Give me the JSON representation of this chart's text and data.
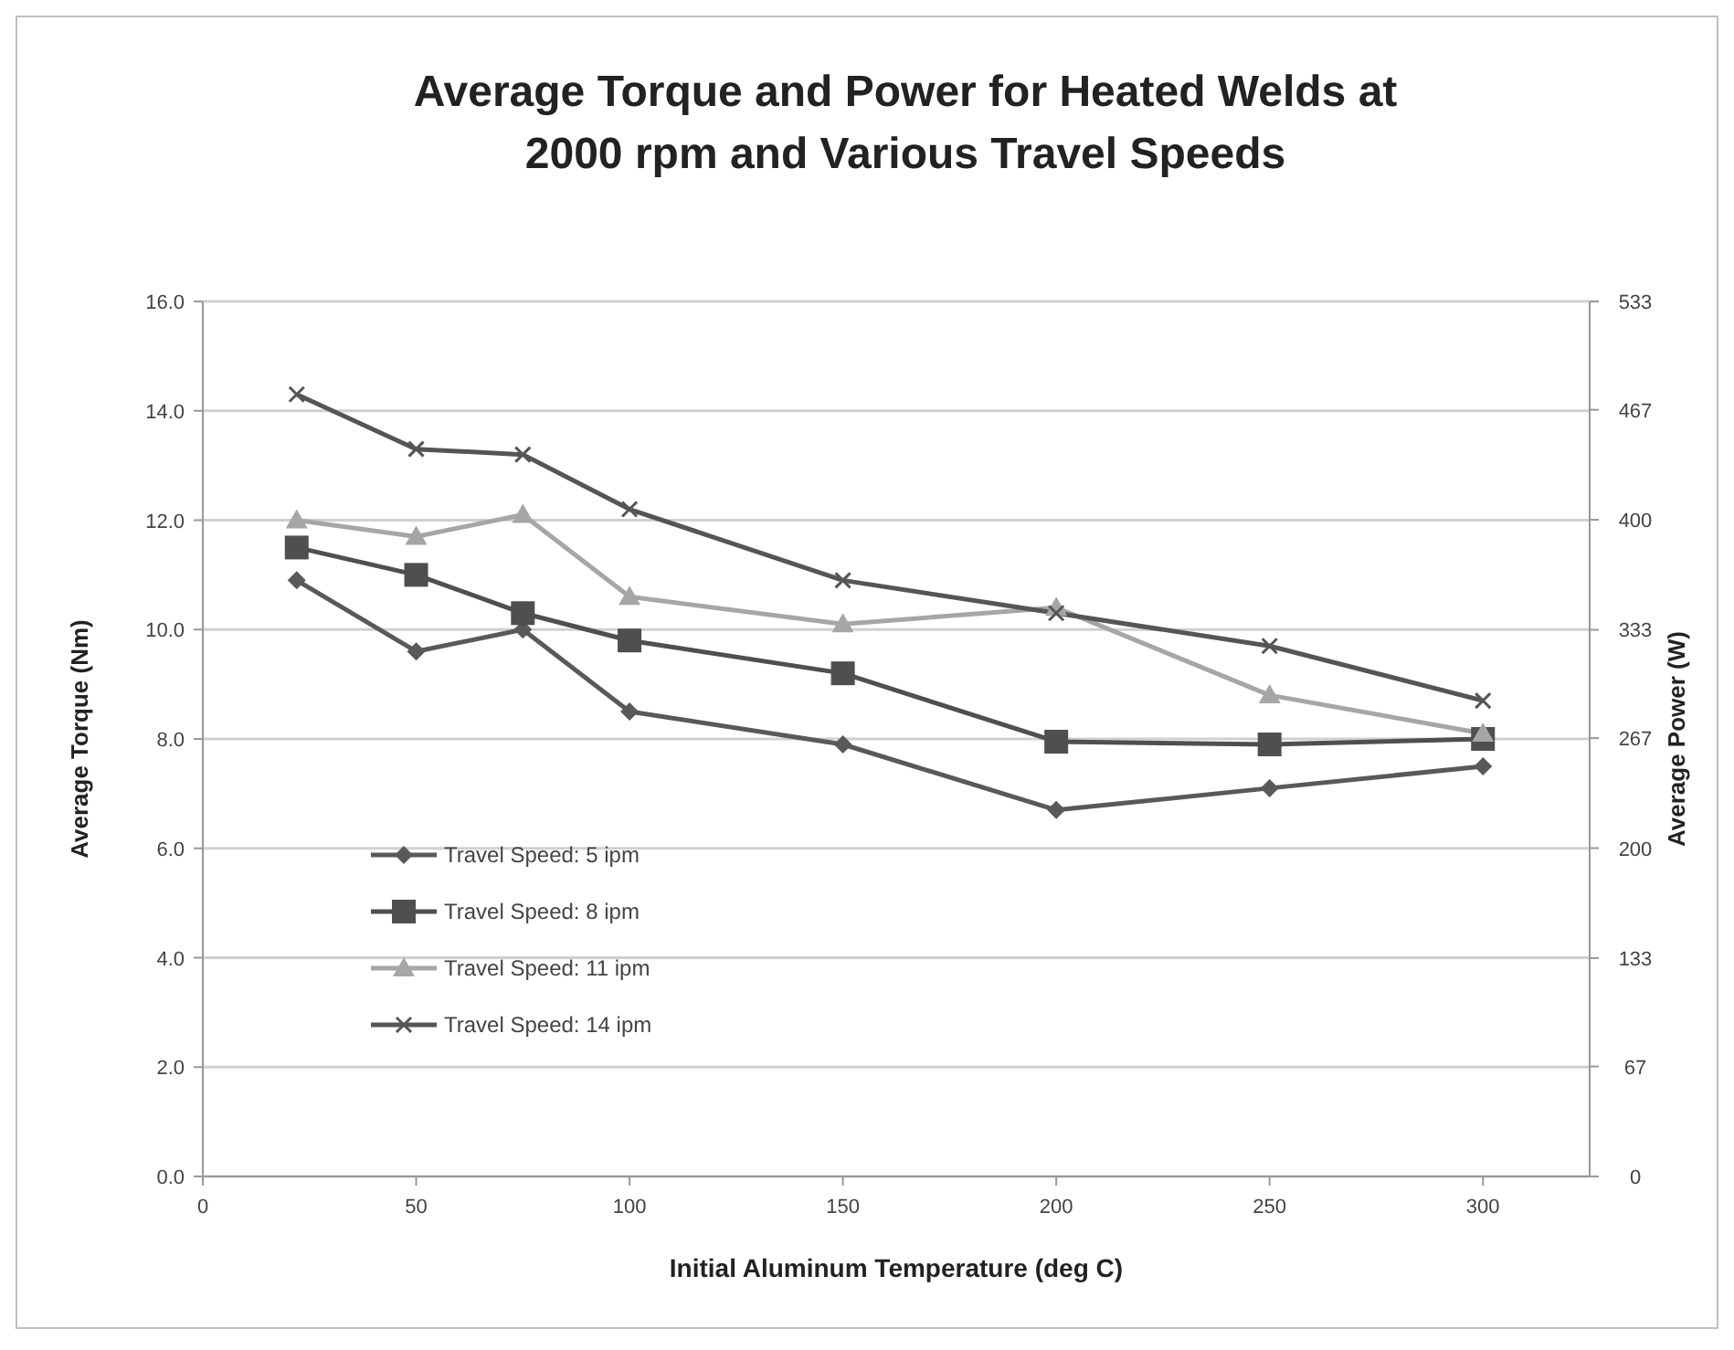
{
  "chart_data": {
    "type": "line",
    "title": "Average Torque and Power for Heated Welds at 2000 rpm and Various Travel Speeds",
    "xlabel": "Initial Aluminum Temperature (deg C)",
    "ylabel": "Average Torque (Nm)",
    "y2label": "Average Power (W)",
    "x": [
      22,
      50,
      75,
      100,
      150,
      200,
      250,
      300
    ],
    "series": [
      {
        "name": "Travel Speed: 5 ipm",
        "color": "#595959",
        "marker": "diamond",
        "values": [
          10.9,
          9.6,
          10.0,
          8.5,
          7.9,
          6.7,
          7.1,
          7.5
        ]
      },
      {
        "name": "Travel Speed: 8 ipm",
        "color": "#4f4f4f",
        "marker": "square",
        "values": [
          11.5,
          11.0,
          10.3,
          9.8,
          9.2,
          7.95,
          7.9,
          8.0
        ]
      },
      {
        "name": "Travel Speed: 11 ipm",
        "color": "#a6a6a6",
        "marker": "triangle",
        "values": [
          12.0,
          11.7,
          12.1,
          10.6,
          10.1,
          10.4,
          8.8,
          8.1
        ]
      },
      {
        "name": "Travel Speed: 14 ipm",
        "color": "#555555",
        "marker": "cross",
        "values": [
          14.3,
          13.3,
          13.2,
          12.2,
          10.9,
          10.3,
          9.7,
          8.7
        ]
      }
    ],
    "xlim": [
      0,
      325
    ],
    "xticks": [
      0,
      50,
      100,
      150,
      200,
      250,
      300
    ],
    "ylim": [
      0,
      16
    ],
    "yticks": [
      {
        "value": 0,
        "label": "0.0"
      },
      {
        "value": 2,
        "label": "2.0"
      },
      {
        "value": 4,
        "label": "4.0"
      },
      {
        "value": 6,
        "label": "6.0"
      },
      {
        "value": 8,
        "label": "8.0"
      },
      {
        "value": 10,
        "label": "10.0"
      },
      {
        "value": 12,
        "label": "12.0"
      },
      {
        "value": 14,
        "label": "14.0"
      },
      {
        "value": 16,
        "label": "16.0"
      }
    ],
    "y2lim": [
      0,
      533
    ],
    "y2ticks": [
      0,
      67,
      133,
      200,
      267,
      333,
      400,
      467,
      533
    ],
    "grid": "y",
    "legend": "bottom left",
    "line_style": "solid"
  }
}
